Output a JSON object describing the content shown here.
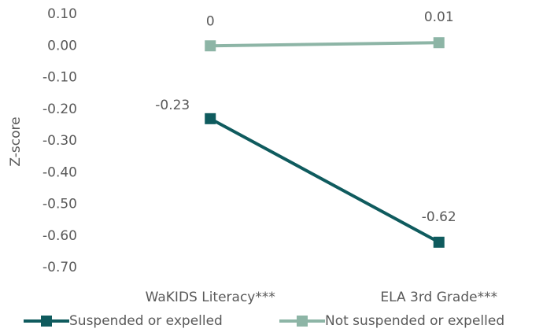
{
  "chart_data": {
    "type": "line",
    "ylabel": "Z-score",
    "categories": [
      "WaKIDS Literacy***",
      "ELA 3rd Grade***"
    ],
    "series": [
      {
        "name": "Suspended or expelled",
        "color": "#0f5b5e",
        "values": [
          -0.23,
          -0.62
        ]
      },
      {
        "name": "Not suspended or expelled",
        "color": "#8db5a6",
        "values": [
          0,
          0.01
        ]
      }
    ],
    "ylim": [
      -0.7,
      0.1
    ],
    "yticks": [
      {
        "value": 0.1,
        "label": "0.10"
      },
      {
        "value": 0,
        "label": "0.00"
      },
      {
        "value": -0.1,
        "label": "-0.10"
      },
      {
        "value": -0.2,
        "label": "-0.20"
      },
      {
        "value": -0.3,
        "label": "-0.30"
      },
      {
        "value": -0.4,
        "label": "-0.40"
      },
      {
        "value": -0.5,
        "label": "-0.50"
      },
      {
        "value": -0.6,
        "label": "-0.60"
      },
      {
        "value": -0.7,
        "label": "-0.70"
      }
    ],
    "grid": false,
    "legend": "bottom"
  }
}
